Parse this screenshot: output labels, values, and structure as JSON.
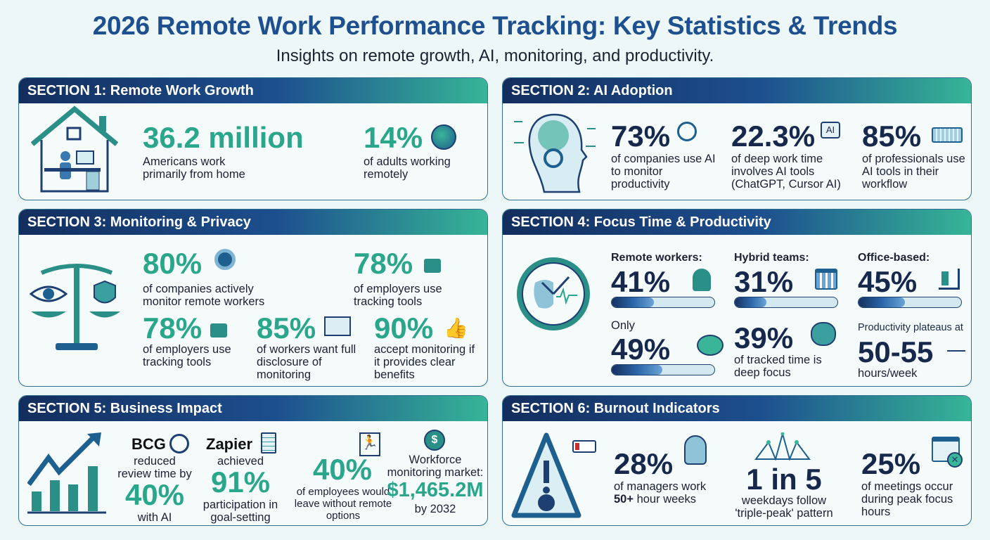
{
  "title": "2026 Remote Work Performance Tracking: Key Statistics & Trends",
  "subtitle": "Insights on remote growth, AI, monitoring, and productivity.",
  "colors": {
    "teal": "#2aa68a",
    "navy": "#17284d",
    "header_start": "#132e5e",
    "header_end": "#36b597"
  },
  "s1": {
    "header": "SECTION 1: Remote Work Growth",
    "stat1": "36.2 million",
    "desc1": "Americans work primarily from home",
    "stat2": "14%",
    "desc2": "of adults working remotely"
  },
  "s2": {
    "header": "SECTION 2: AI Adoption",
    "stat1": "73%",
    "desc1": "of companies use AI to monitor productivity",
    "stat2": "22.3%",
    "icon2_text": "AI",
    "desc2": "of deep work time involves AI tools (ChatGPT, Cursor AI)",
    "stat3": "85%",
    "desc3": "of professionals use AI tools in their workflow"
  },
  "s3": {
    "header": "SECTION 3: Monitoring & Privacy",
    "stat1": "80%",
    "desc1": "of companies actively monitor remote workers",
    "stat2": "78%",
    "desc2": "of employers use tracking tools",
    "stat3": "78%",
    "desc3": "of employers use tracking tools",
    "stat4": "85%",
    "desc4": "of workers want full disclosure of monitoring",
    "stat5": "90%",
    "desc5": "accept monitoring if it provides clear benefits"
  },
  "s4": {
    "header": "SECTION 4: Focus Time & Productivity",
    "remote_label": "Remote workers:",
    "remote": "41%",
    "remote_fill": 41,
    "hybrid_label": "Hybrid teams:",
    "hybrid": "31%",
    "hybrid_fill": 31,
    "office_label": "Office-based:",
    "office": "45%",
    "office_fill": 45,
    "only_label": "Only",
    "only": "49%",
    "only_fill": 49,
    "deep": "39%",
    "deep_desc": "of tracked time is deep focus",
    "plateau_label": "Productivity plateaus at",
    "plateau": "50-55",
    "plateau_unit": "hours/week"
  },
  "s5": {
    "header": "SECTION 5: Business Impact",
    "bcg": "BCG",
    "bcg_desc": "reduced review time by",
    "bcg_stat": "40%",
    "bcg_suffix": "with AI",
    "zapier": "Zapier",
    "zapier_desc": "achieved",
    "zapier_stat": "91%",
    "zapier_suffix": "participation in goal-setting",
    "leave_stat": "40%",
    "leave_desc": "of employees would leave without remote options",
    "market_label": "Workforce monitoring market:",
    "market_stat": "$1,465.2M",
    "market_suffix": "by 2032"
  },
  "s6": {
    "header": "SECTION 6: Burnout Indicators",
    "stat1": "28%",
    "desc1a": "of managers work",
    "desc1b": "50+",
    "desc1c": " hour weeks",
    "stat2": "1 in 5",
    "desc2": "weekdays follow 'triple-peak' pattern",
    "stat3": "25%",
    "desc3": "of meetings occur during peak focus hours"
  }
}
